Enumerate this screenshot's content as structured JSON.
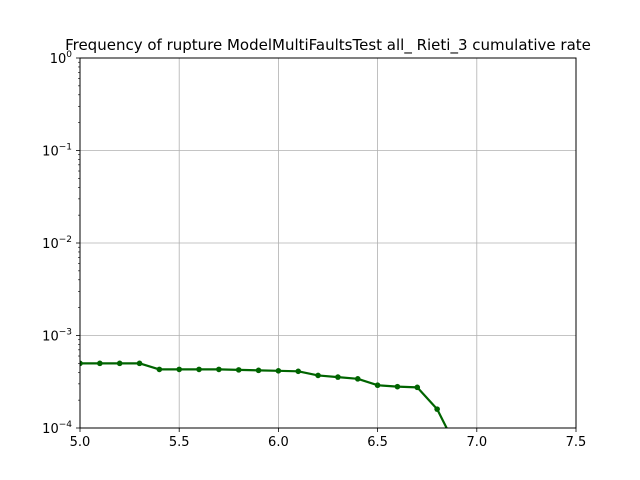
{
  "chart_data": {
    "type": "line",
    "title": "Frequency of rupture ModelMultiFaultsTest all_ Rieti_3 cumulative rate",
    "xlabel": "",
    "ylabel": "",
    "xlim": [
      5.0,
      7.5
    ],
    "ylim": [
      0.0001,
      1
    ],
    "yscale": "log",
    "grid": true,
    "x_ticks": [
      5.0,
      5.5,
      6.0,
      6.5,
      7.0,
      7.5
    ],
    "x_tick_labels": [
      "5.0",
      "5.5",
      "6.0",
      "6.5",
      "7.0",
      "7.5"
    ],
    "y_ticks": [
      0.0001,
      0.001,
      0.01,
      0.1,
      1
    ],
    "y_tick_labels": [
      {
        "base": "10",
        "exp": "−4"
      },
      {
        "base": "10",
        "exp": "−3"
      },
      {
        "base": "10",
        "exp": "−2"
      },
      {
        "base": "10",
        "exp": "−1"
      },
      {
        "base": "10",
        "exp": "0"
      }
    ],
    "series": [
      {
        "color": "#006400",
        "x": [
          5.0,
          5.1,
          5.2,
          5.3,
          5.4,
          5.5,
          5.6,
          5.7,
          5.8,
          5.9,
          6.0,
          6.1,
          6.2,
          6.3,
          6.4,
          6.5,
          6.6,
          6.7,
          6.8,
          6.9
        ],
        "y": [
          0.0005,
          0.0005,
          0.0005,
          0.0005,
          0.00043,
          0.00043,
          0.00043,
          0.00043,
          0.000425,
          0.00042,
          0.000415,
          0.00041,
          0.00037,
          0.000355,
          0.00034,
          0.00029,
          0.00028,
          0.000275,
          0.00016,
          6e-05
        ]
      }
    ]
  }
}
